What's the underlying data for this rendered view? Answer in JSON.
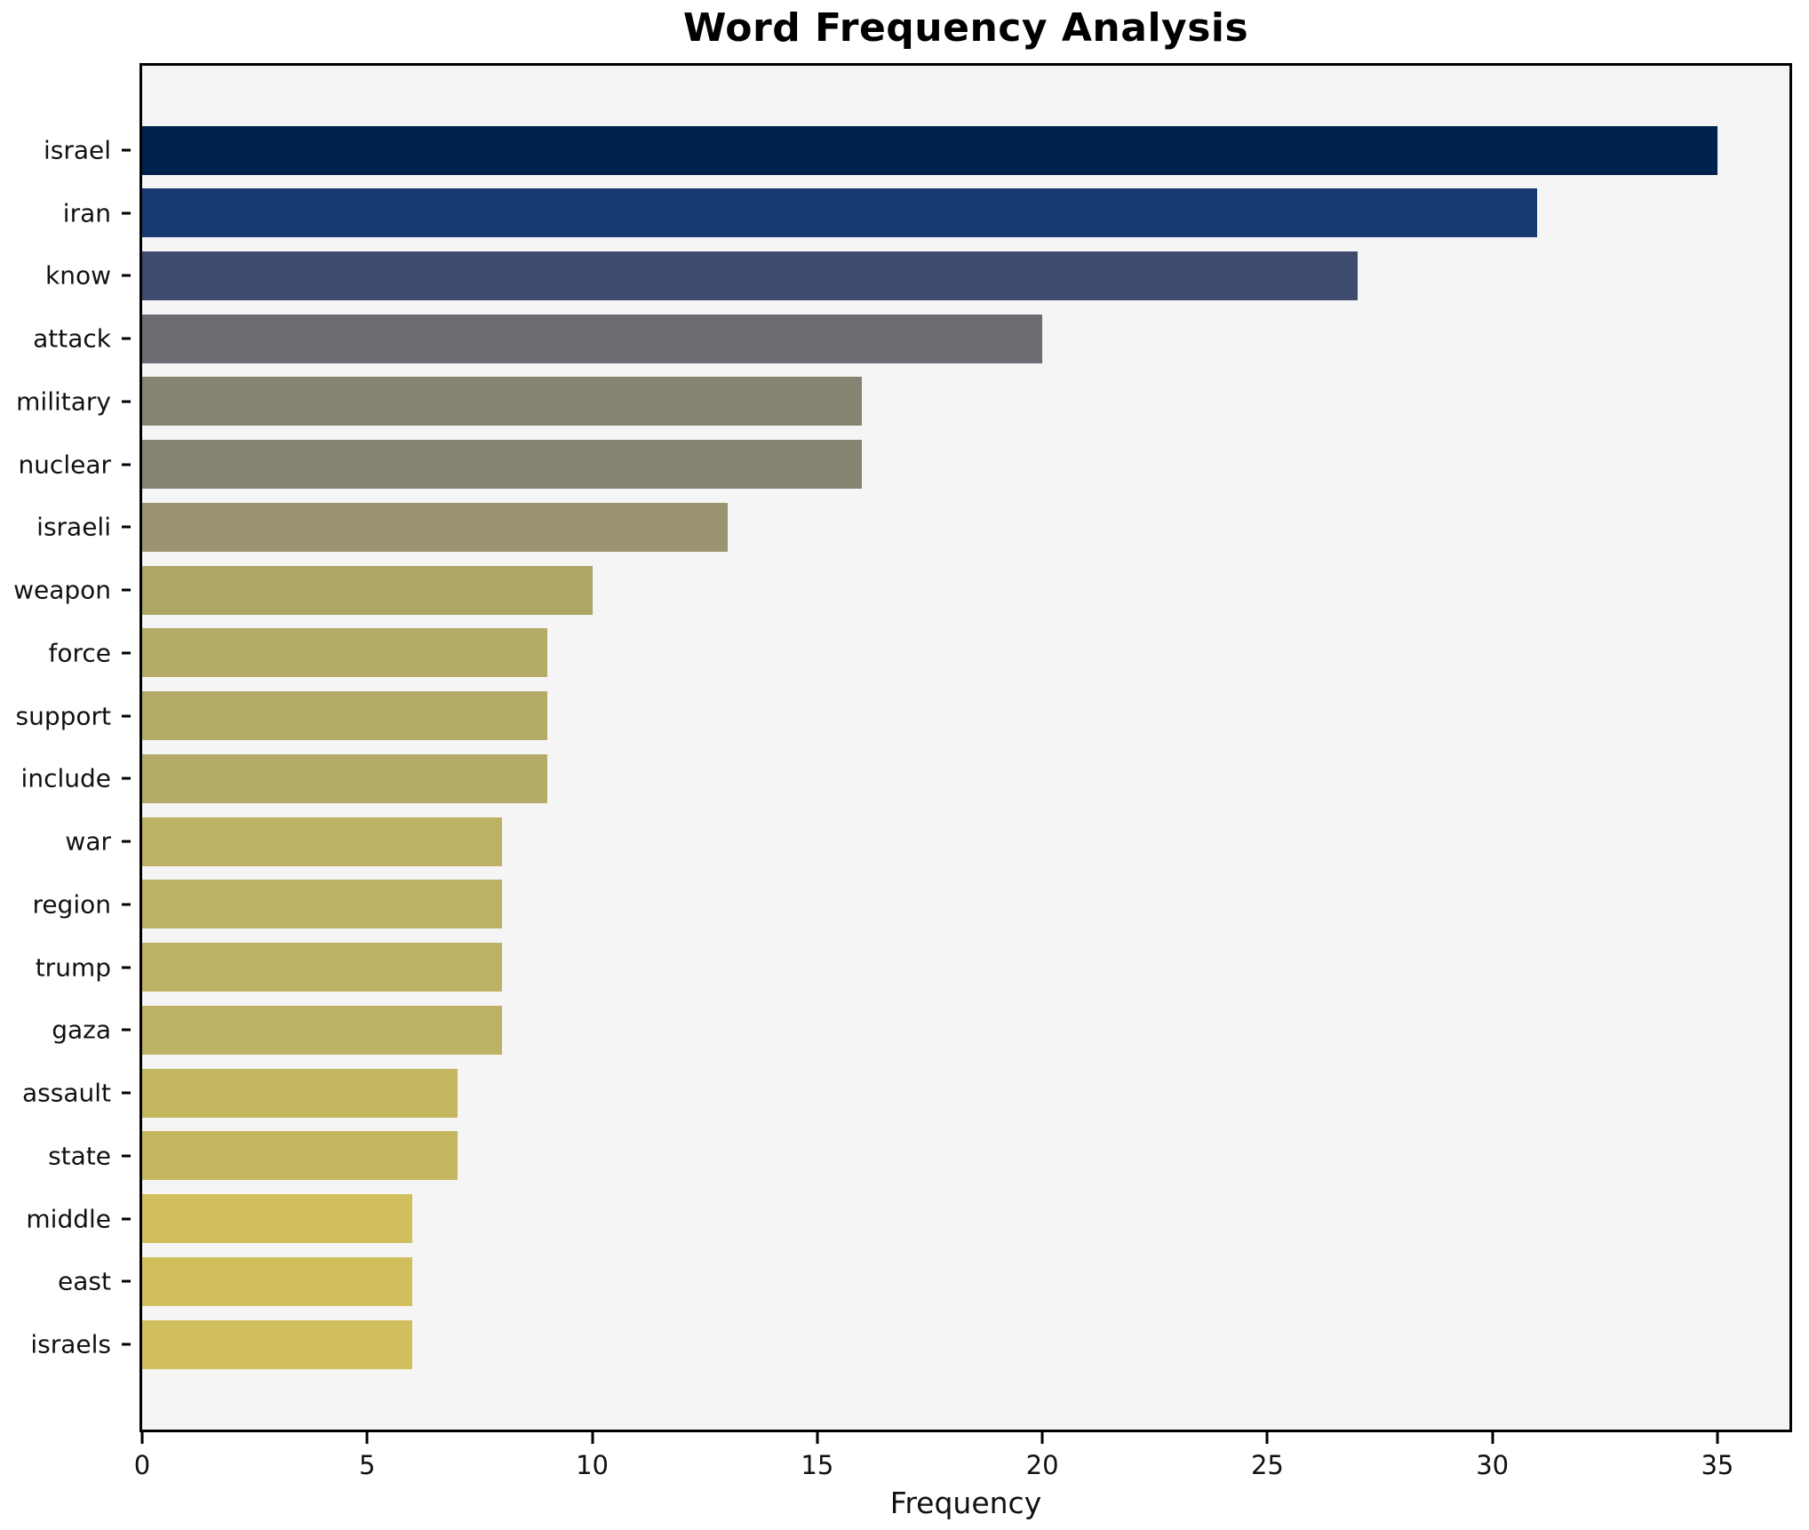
{
  "chart_data": {
    "type": "bar",
    "orientation": "horizontal",
    "title": "Word Frequency Analysis",
    "xlabel": "Frequency",
    "ylabel": "",
    "categories": [
      "israel",
      "iran",
      "know",
      "attack",
      "military",
      "nuclear",
      "israeli",
      "weapon",
      "force",
      "support",
      "include",
      "war",
      "region",
      "trump",
      "gaza",
      "assault",
      "state",
      "middle",
      "east",
      "israels"
    ],
    "values": [
      35,
      31,
      27,
      20,
      16,
      16,
      13,
      10,
      9,
      9,
      9,
      8,
      8,
      8,
      8,
      7,
      7,
      6,
      6,
      6
    ],
    "bar_colors": [
      "#00224e",
      "#173a70",
      "#3e4a6e",
      "#6a6c71",
      "#858371",
      "#858371",
      "#9b9470",
      "#ada667",
      "#b4ab68",
      "#b4ab68",
      "#b4ab68",
      "#bcb165",
      "#bcb165",
      "#bcb165",
      "#bcb165",
      "#c4b75f",
      "#c4b75f",
      "#d0bf5c",
      "#d0bf5c",
      "#d0bf5c"
    ],
    "xlim": [
      0,
      36.6
    ],
    "x_ticks": [
      0,
      5,
      10,
      15,
      20,
      25,
      30,
      35
    ],
    "grid": false,
    "legend": null,
    "plot_bg": "#f5f5f6",
    "figure_bg": "#ffffff",
    "spine_color": "#000000"
  }
}
